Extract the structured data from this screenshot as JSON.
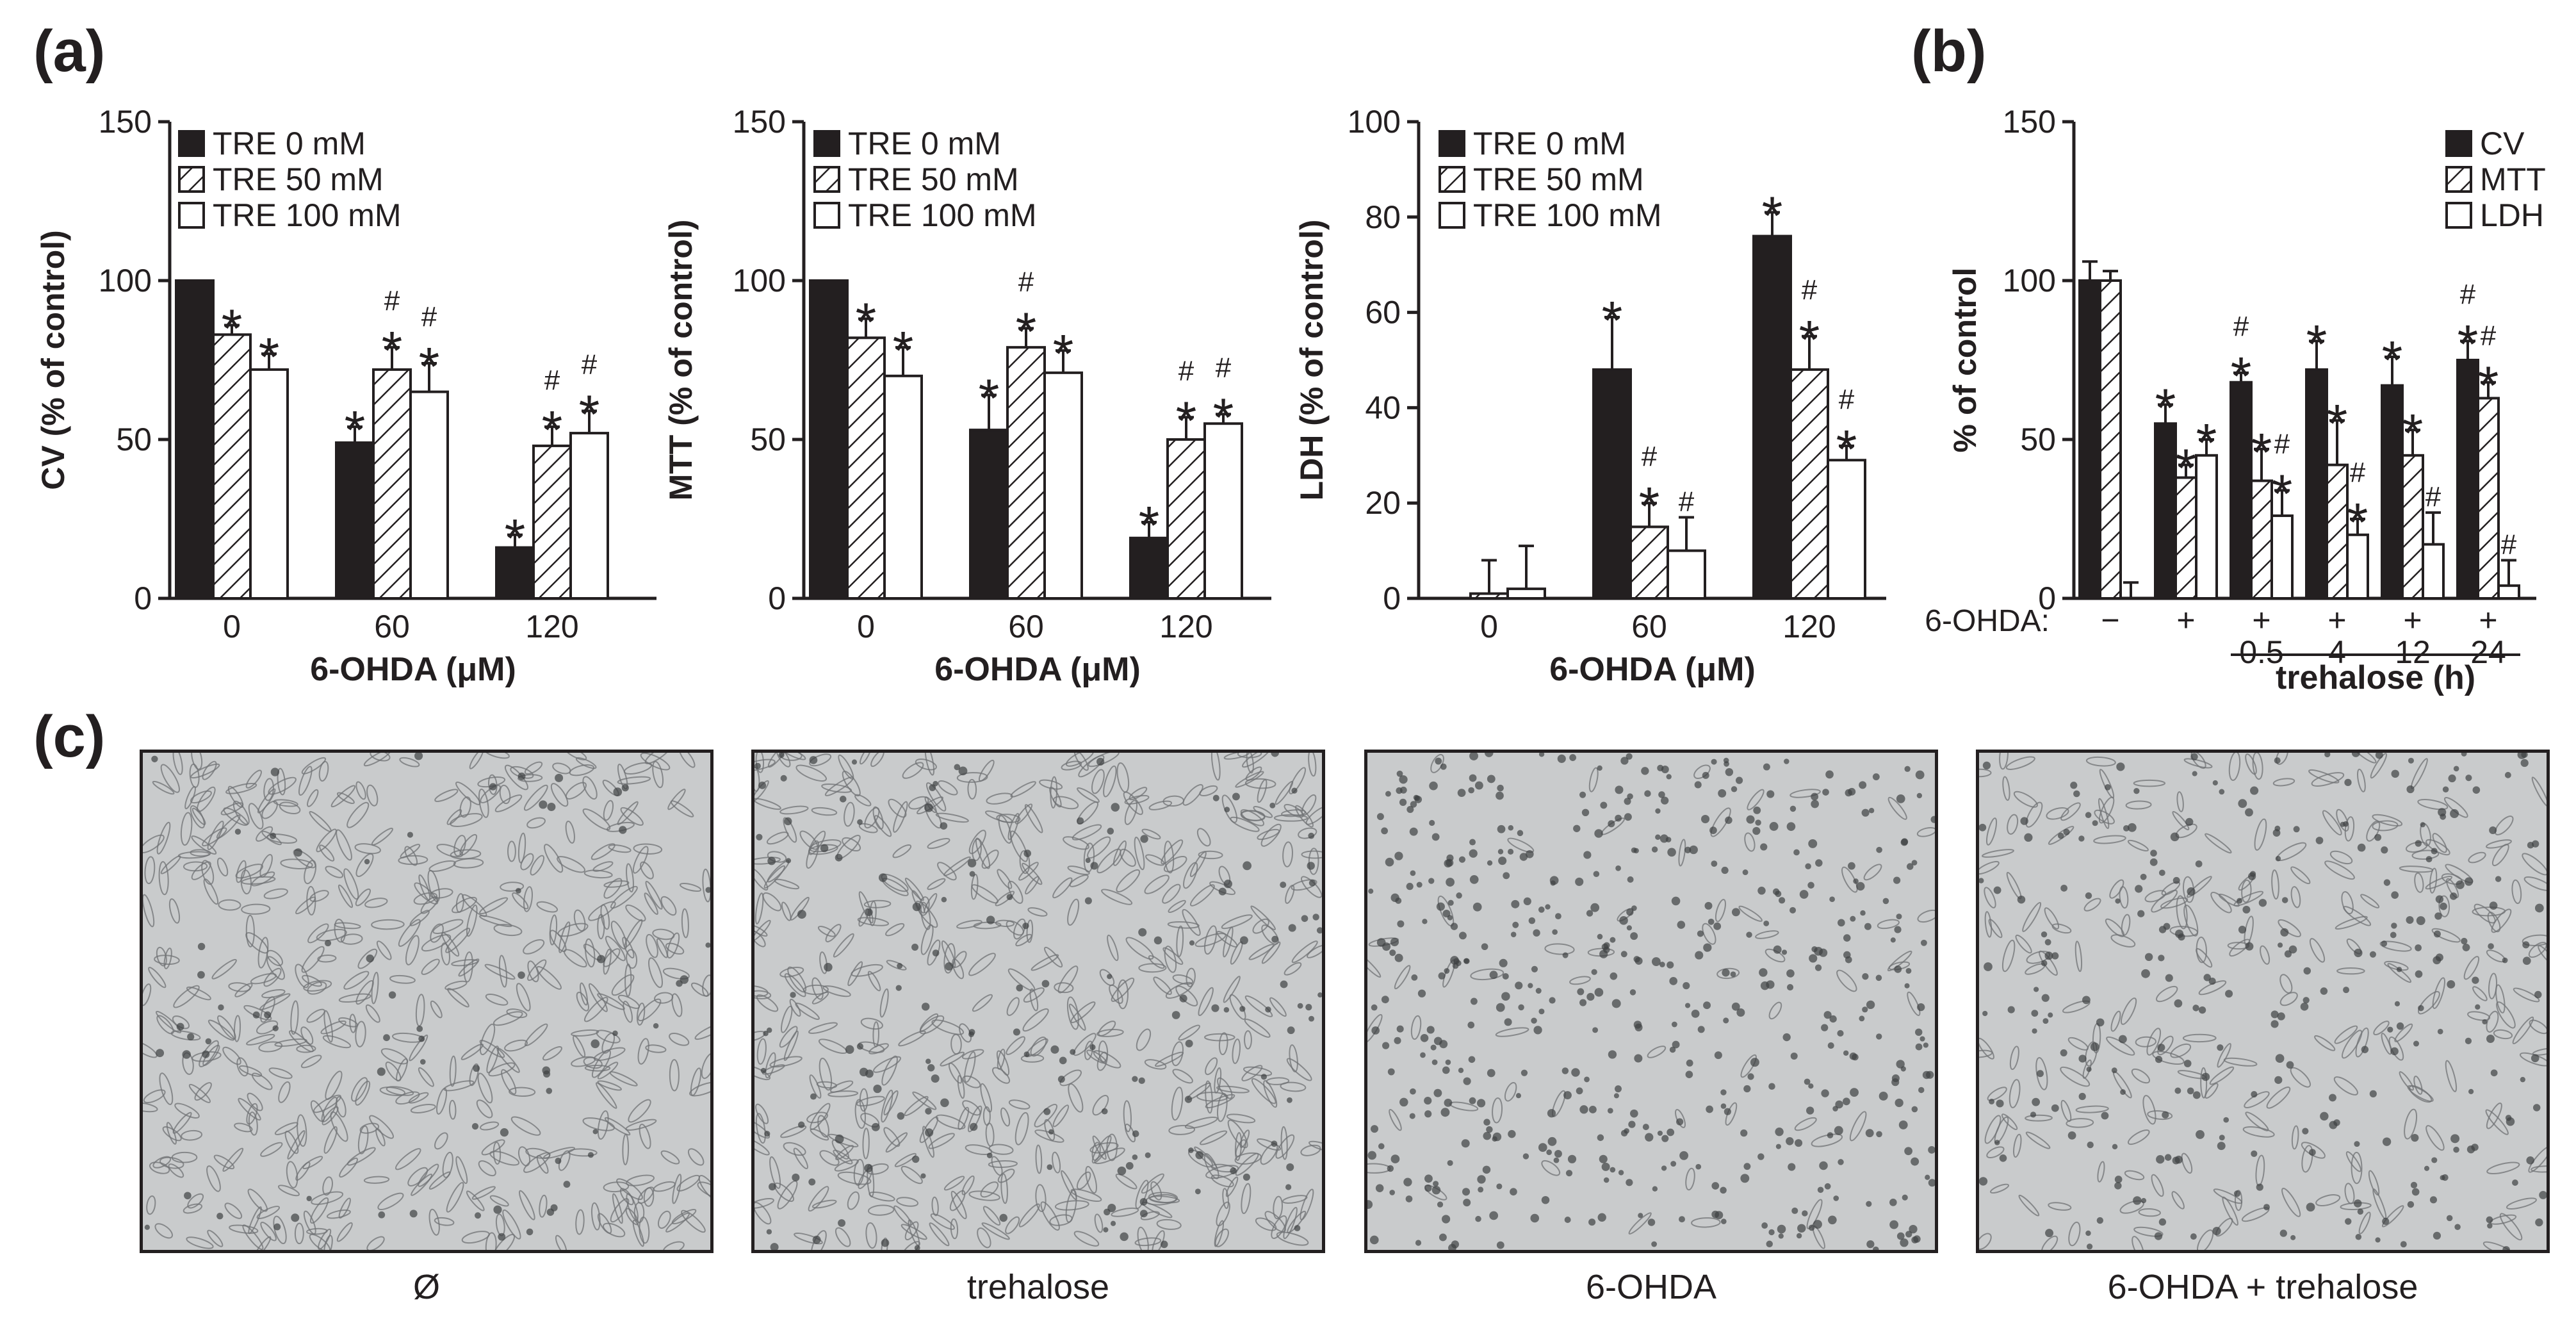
{
  "panel_labels": {
    "a": "(a)",
    "b": "(b)",
    "c": "(c)"
  },
  "colors": {
    "ink": "#231f20",
    "white": "#ffffff",
    "micro_bg": "#c9cbcc",
    "cell": "#6f7274",
    "cell_dark": "#3f4143"
  },
  "chart_data": [
    {
      "type": "bar",
      "panel": "a",
      "categories": [
        "0",
        "60",
        "120"
      ],
      "xlabel": "6-OHDA (μM)",
      "ylabel": "CV (% of control)",
      "ylim": [
        0,
        150
      ],
      "yticks": [
        "0",
        "50",
        "100",
        "150"
      ],
      "legend": "top-left",
      "series": [
        {
          "name": "TRE 0 mM",
          "pattern": "solid",
          "values": [
            100,
            49,
            16
          ],
          "errors": [
            0,
            5,
            4
          ],
          "marks": [
            [],
            [
              "*"
            ],
            [
              "*"
            ]
          ]
        },
        {
          "name": "TRE 50 mM",
          "pattern": "hatched",
          "values": [
            83,
            72,
            48
          ],
          "errors": [
            3,
            7,
            6
          ],
          "marks": [
            [
              "*"
            ],
            [
              "*",
              "#"
            ],
            [
              "*",
              "#"
            ]
          ]
        },
        {
          "name": "TRE 100 mM",
          "pattern": "open",
          "values": [
            72,
            65,
            52
          ],
          "errors": [
            5,
            9,
            7
          ],
          "marks": [
            [
              "*"
            ],
            [
              "*",
              "#"
            ],
            [
              "*",
              "#"
            ]
          ]
        }
      ]
    },
    {
      "type": "bar",
      "panel": "a",
      "categories": [
        "0",
        "60",
        "120"
      ],
      "xlabel": "6-OHDA (μM)",
      "ylabel": "MTT (% of control)",
      "ylim": [
        0,
        150
      ],
      "yticks": [
        "0",
        "50",
        "100",
        "150"
      ],
      "legend": "top-left",
      "series": [
        {
          "name": "TRE 0 mM",
          "pattern": "solid",
          "values": [
            100,
            53,
            19
          ],
          "errors": [
            0,
            11,
            5
          ],
          "marks": [
            [],
            [
              "*"
            ],
            [
              "*"
            ]
          ]
        },
        {
          "name": "TRE 50 mM",
          "pattern": "hatched",
          "values": [
            82,
            79,
            50
          ],
          "errors": [
            6,
            6,
            7
          ],
          "marks": [
            [
              "*"
            ],
            [
              "*",
              "#"
            ],
            [
              "*",
              "#"
            ]
          ]
        },
        {
          "name": "TRE 100 mM",
          "pattern": "open",
          "values": [
            70,
            71,
            55
          ],
          "errors": [
            9,
            7,
            3
          ],
          "marks": [
            [
              "*"
            ],
            [
              "*"
            ],
            [
              "*",
              "#"
            ]
          ]
        }
      ]
    },
    {
      "type": "bar",
      "panel": "a",
      "categories": [
        "0",
        "60",
        "120"
      ],
      "xlabel": "6-OHDA (μM)",
      "ylabel": "LDH (% of control)",
      "ylim": [
        0,
        100
      ],
      "yticks": [
        "0",
        "20",
        "40",
        "60",
        "80",
        "100"
      ],
      "legend": "top-left",
      "series": [
        {
          "name": "TRE 0 mM",
          "pattern": "solid",
          "values": [
            0,
            48,
            76
          ],
          "errors": [
            0,
            11,
            5
          ],
          "marks": [
            [],
            [
              "*"
            ],
            [
              "*"
            ]
          ]
        },
        {
          "name": "TRE 50 mM",
          "pattern": "hatched",
          "values": [
            1,
            15,
            48
          ],
          "errors": [
            7,
            5,
            7
          ],
          "marks": [
            [],
            [
              "*",
              "#"
            ],
            [
              "*",
              "#"
            ]
          ]
        },
        {
          "name": "TRE 100 mM",
          "pattern": "open",
          "values": [
            2,
            10,
            29
          ],
          "errors": [
            9,
            7,
            3
          ],
          "marks": [
            [],
            [
              "#"
            ],
            [
              "*",
              "#"
            ]
          ]
        }
      ]
    },
    {
      "type": "bar",
      "panel": "b",
      "categories": [
        "−",
        "+",
        "+\n0.5",
        "+\n4",
        "+\n12",
        "+\n24"
      ],
      "x_row_label": "6-OHDA:",
      "x_group_label": "trehalose (h)",
      "ylabel": "% of control",
      "ylim": [
        0,
        150
      ],
      "yticks": [
        "0",
        "50",
        "100",
        "150"
      ],
      "legend": "top-right",
      "series": [
        {
          "name": "CV",
          "pattern": "solid",
          "values": [
            100,
            55,
            68,
            72,
            67,
            75
          ],
          "errors": [
            6,
            6,
            3,
            9,
            9,
            6
          ],
          "marks": [
            [],
            [
              "*"
            ],
            [
              "*",
              "#"
            ],
            [
              "*"
            ],
            [
              "*"
            ],
            [
              "*",
              "#"
            ]
          ]
        },
        {
          "name": "MTT",
          "pattern": "hatched",
          "values": [
            100,
            38,
            37,
            42,
            45,
            63
          ],
          "errors": [
            3,
            4,
            10,
            14,
            8,
            5
          ],
          "marks": [
            [],
            [
              "*"
            ],
            [
              "*"
            ],
            [
              "*"
            ],
            [
              "*"
            ],
            [
              "*",
              "#"
            ]
          ]
        },
        {
          "name": "LDH",
          "pattern": "open",
          "values": [
            0,
            45,
            26,
            20,
            17,
            4
          ],
          "errors": [
            5,
            5,
            8,
            5,
            10,
            8
          ],
          "marks": [
            [],
            [
              "*"
            ],
            [
              "*",
              "#"
            ],
            [
              "*",
              "#"
            ],
            [
              "#"
            ],
            [
              "#"
            ]
          ]
        }
      ]
    }
  ],
  "micrographs": [
    {
      "caption": "Ø",
      "state": "untreated"
    },
    {
      "caption": "trehalose",
      "state": "treated"
    },
    {
      "caption": "6-OHDA",
      "state": "damaged"
    },
    {
      "caption": "6-OHDA + trehalose",
      "state": "protected"
    }
  ]
}
